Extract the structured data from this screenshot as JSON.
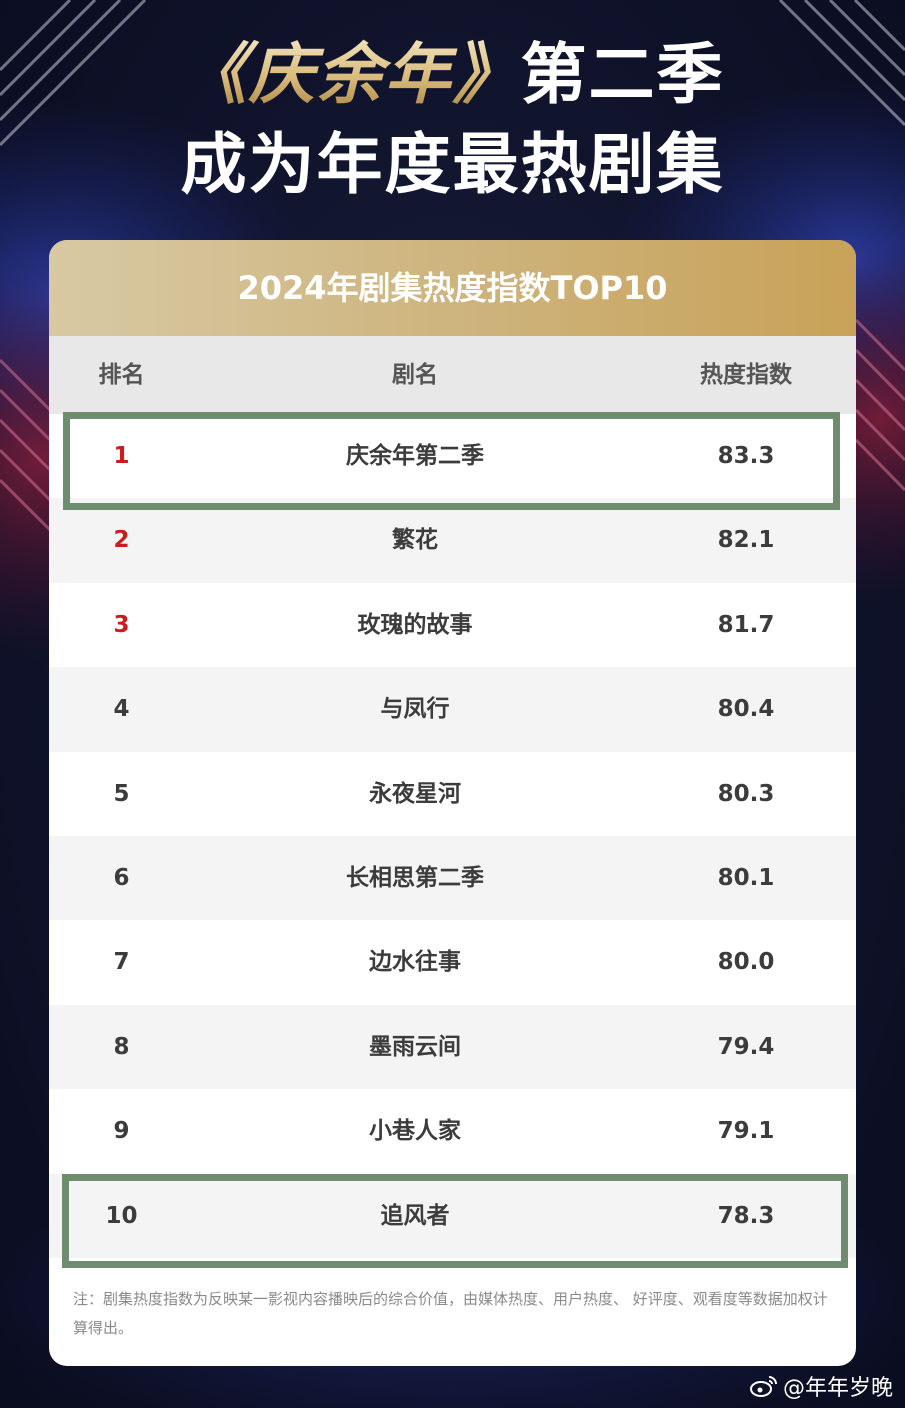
{
  "title": {
    "book": "《庆余年》",
    "season": "第二季",
    "line2": "成为年度最热剧集"
  },
  "card": {
    "header": "2024年剧集热度指数TOP10",
    "columns": {
      "rank": "排名",
      "name": "剧名",
      "score": "热度指数"
    },
    "rows": [
      {
        "rank": "1",
        "name": "庆余年第二季",
        "score": "83.3"
      },
      {
        "rank": "2",
        "name": "繁花",
        "score": "82.1"
      },
      {
        "rank": "3",
        "name": "玫瑰的故事",
        "score": "81.7"
      },
      {
        "rank": "4",
        "name": "与凤行",
        "score": "80.4"
      },
      {
        "rank": "5",
        "name": "永夜星河",
        "score": "80.3"
      },
      {
        "rank": "6",
        "name": "长相思第二季",
        "score": "80.1"
      },
      {
        "rank": "7",
        "name": "边水往事",
        "score": "80.0"
      },
      {
        "rank": "8",
        "name": "墨雨云间",
        "score": "79.4"
      },
      {
        "rank": "9",
        "name": "小巷人家",
        "score": "79.1"
      },
      {
        "rank": "10",
        "name": "追风者",
        "score": "78.3"
      }
    ],
    "note": "注：剧集热度指数为反映某一影视内容播映后的综合价值，由媒体热度、用户热度、 好评度、观看度等数据加权计算得出。"
  },
  "watermark": {
    "text": "@年年岁晚",
    "icon": "weibo-icon"
  },
  "colors": {
    "background": "#11152e",
    "gold": "#cdb27a",
    "top_rank_red": "#cc1b1b",
    "highlight_green": "#6e8c6e"
  }
}
